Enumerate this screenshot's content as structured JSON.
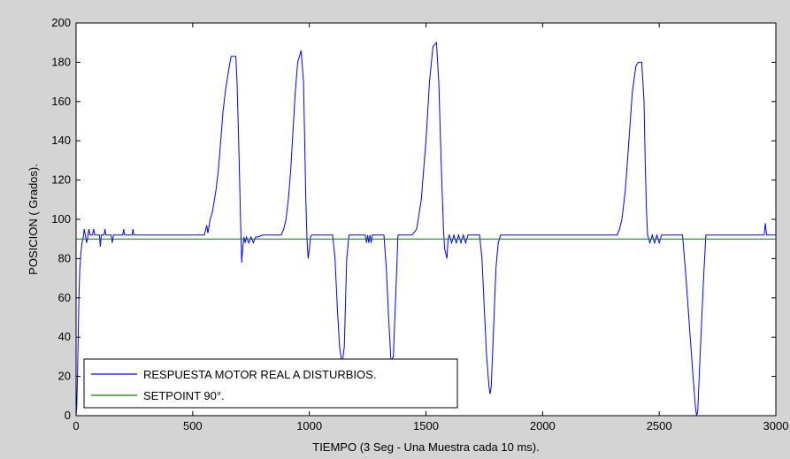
{
  "chart_data": {
    "type": "line",
    "title": "",
    "xlabel": "TIEMPO (3 Seg - Una Muestra cada 10 ms).",
    "ylabel": "POSICION ( Grados).",
    "xlim": [
      0,
      3000
    ],
    "ylim": [
      0,
      200
    ],
    "xticks": [
      0,
      500,
      1000,
      1500,
      2000,
      2500,
      3000
    ],
    "yticks": [
      0,
      20,
      40,
      60,
      80,
      100,
      120,
      140,
      160,
      180,
      200
    ],
    "grid": false,
    "legend_position": "bottom-left",
    "colors": {
      "background": "#d4d4d4",
      "plot_bg": "#ffffff",
      "response": "#0000ff",
      "setpoint": "#008000"
    },
    "series": [
      {
        "name": "RESPUESTA MOTOR REAL A DISTURBIOS.",
        "color": "#0000ff",
        "points": [
          [
            0,
            0
          ],
          [
            3,
            5
          ],
          [
            6,
            20
          ],
          [
            9,
            40
          ],
          [
            12,
            60
          ],
          [
            16,
            75
          ],
          [
            20,
            82
          ],
          [
            25,
            88
          ],
          [
            30,
            90
          ],
          [
            35,
            95
          ],
          [
            40,
            92
          ],
          [
            45,
            88
          ],
          [
            50,
            91
          ],
          [
            55,
            95
          ],
          [
            60,
            92
          ],
          [
            70,
            92
          ],
          [
            75,
            95
          ],
          [
            80,
            92
          ],
          [
            100,
            92
          ],
          [
            104,
            86
          ],
          [
            108,
            92
          ],
          [
            120,
            92
          ],
          [
            124,
            95
          ],
          [
            128,
            92
          ],
          [
            150,
            92
          ],
          [
            155,
            88
          ],
          [
            160,
            92
          ],
          [
            200,
            92
          ],
          [
            204,
            95
          ],
          [
            208,
            92
          ],
          [
            240,
            92
          ],
          [
            244,
            95
          ],
          [
            248,
            92
          ],
          [
            550,
            92
          ],
          [
            560,
            97
          ],
          [
            565,
            93
          ],
          [
            575,
            100
          ],
          [
            585,
            104
          ],
          [
            600,
            115
          ],
          [
            610,
            125
          ],
          [
            620,
            140
          ],
          [
            630,
            155
          ],
          [
            640,
            165
          ],
          [
            650,
            173
          ],
          [
            660,
            180
          ],
          [
            665,
            183
          ],
          [
            685,
            183
          ],
          [
            690,
            170
          ],
          [
            695,
            150
          ],
          [
            700,
            125
          ],
          [
            705,
            100
          ],
          [
            710,
            78
          ],
          [
            715,
            86
          ],
          [
            720,
            91
          ],
          [
            725,
            88
          ],
          [
            730,
            91
          ],
          [
            740,
            88
          ],
          [
            750,
            91
          ],
          [
            760,
            88
          ],
          [
            770,
            91
          ],
          [
            780,
            91
          ],
          [
            800,
            92
          ],
          [
            880,
            92
          ],
          [
            890,
            95
          ],
          [
            900,
            100
          ],
          [
            910,
            110
          ],
          [
            920,
            125
          ],
          [
            930,
            145
          ],
          [
            940,
            165
          ],
          [
            950,
            180
          ],
          [
            965,
            186
          ],
          [
            975,
            170
          ],
          [
            980,
            140
          ],
          [
            985,
            110
          ],
          [
            990,
            90
          ],
          [
            995,
            80
          ],
          [
            1000,
            85
          ],
          [
            1005,
            91
          ],
          [
            1010,
            92
          ],
          [
            1100,
            92
          ],
          [
            1110,
            80
          ],
          [
            1120,
            55
          ],
          [
            1130,
            35
          ],
          [
            1140,
            26
          ],
          [
            1150,
            35
          ],
          [
            1160,
            80
          ],
          [
            1170,
            92
          ],
          [
            1240,
            92
          ],
          [
            1245,
            88
          ],
          [
            1250,
            92
          ],
          [
            1255,
            88
          ],
          [
            1260,
            92
          ],
          [
            1265,
            88
          ],
          [
            1270,
            92
          ],
          [
            1320,
            92
          ],
          [
            1330,
            75
          ],
          [
            1340,
            50
          ],
          [
            1350,
            28
          ],
          [
            1360,
            30
          ],
          [
            1370,
            60
          ],
          [
            1380,
            92
          ],
          [
            1420,
            92
          ],
          [
            1440,
            92
          ],
          [
            1460,
            95
          ],
          [
            1480,
            110
          ],
          [
            1500,
            140
          ],
          [
            1515,
            170
          ],
          [
            1530,
            188
          ],
          [
            1545,
            190
          ],
          [
            1555,
            170
          ],
          [
            1565,
            130
          ],
          [
            1575,
            95
          ],
          [
            1580,
            85
          ],
          [
            1590,
            80
          ],
          [
            1595,
            90
          ],
          [
            1600,
            92
          ],
          [
            1610,
            88
          ],
          [
            1620,
            92
          ],
          [
            1630,
            88
          ],
          [
            1640,
            92
          ],
          [
            1650,
            88
          ],
          [
            1660,
            92
          ],
          [
            1670,
            88
          ],
          [
            1680,
            92
          ],
          [
            1730,
            92
          ],
          [
            1740,
            80
          ],
          [
            1750,
            55
          ],
          [
            1760,
            30
          ],
          [
            1770,
            15
          ],
          [
            1775,
            11
          ],
          [
            1780,
            15
          ],
          [
            1790,
            45
          ],
          [
            1800,
            75
          ],
          [
            1810,
            88
          ],
          [
            1820,
            92
          ],
          [
            2000,
            92
          ],
          [
            2200,
            92
          ],
          [
            2300,
            92
          ],
          [
            2320,
            92
          ],
          [
            2330,
            95
          ],
          [
            2340,
            100
          ],
          [
            2355,
            115
          ],
          [
            2370,
            140
          ],
          [
            2385,
            165
          ],
          [
            2400,
            178
          ],
          [
            2410,
            180
          ],
          [
            2425,
            180
          ],
          [
            2435,
            160
          ],
          [
            2440,
            130
          ],
          [
            2445,
            105
          ],
          [
            2450,
            92
          ],
          [
            2460,
            88
          ],
          [
            2470,
            92
          ],
          [
            2480,
            88
          ],
          [
            2490,
            92
          ],
          [
            2500,
            88
          ],
          [
            2510,
            92
          ],
          [
            2560,
            92
          ],
          [
            2600,
            92
          ],
          [
            2615,
            70
          ],
          [
            2630,
            45
          ],
          [
            2645,
            20
          ],
          [
            2655,
            5
          ],
          [
            2660,
            0
          ],
          [
            2665,
            2
          ],
          [
            2675,
            30
          ],
          [
            2690,
            70
          ],
          [
            2700,
            92
          ],
          [
            2950,
            92
          ],
          [
            2955,
            98
          ],
          [
            2960,
            92
          ],
          [
            3000,
            92
          ]
        ]
      },
      {
        "name": "SETPOINT 90°.",
        "color": "#008000",
        "points": [
          [
            0,
            90
          ],
          [
            3000,
            90
          ]
        ]
      }
    ]
  }
}
